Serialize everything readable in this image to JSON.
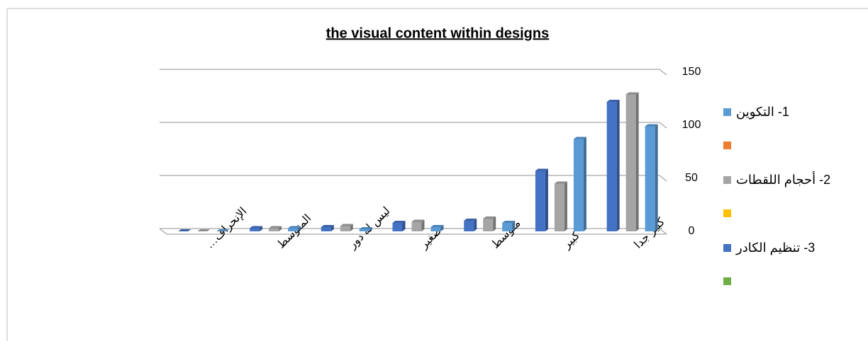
{
  "chart_data": {
    "type": "bar",
    "title": "the visual content within designs",
    "categories": [
      "الإنحراف…",
      "المتوسط",
      "ليس له دور",
      "صغير",
      "متوسط",
      "كبير",
      "كبير جدا"
    ],
    "series": [
      {
        "name": "1- التكوين",
        "color": "#5b9bd5",
        "values": [
          0,
          3,
          2,
          4,
          8,
          87,
          99
        ]
      },
      {
        "name": "2- أحجام اللقطات",
        "color": "#a5a5a5",
        "values": [
          0,
          3,
          5,
          9,
          12,
          45,
          129
        ]
      },
      {
        "name": "3- تنظيم الكادر",
        "color": "#4472c4",
        "values": [
          0,
          3,
          4,
          8,
          10,
          57,
          122
        ]
      }
    ],
    "ylim": [
      0,
      150
    ],
    "yticks": [
      0,
      50,
      100,
      150
    ],
    "grid": true
  }
}
